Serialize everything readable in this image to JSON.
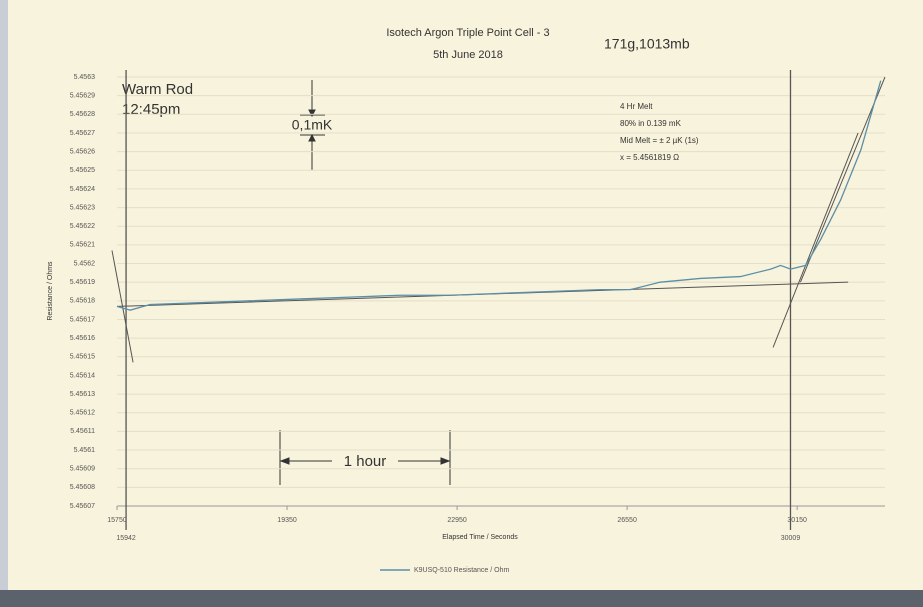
{
  "chart_data": {
    "type": "line",
    "title": "Isotech Argon Triple Point Cell - 3",
    "subtitle": "5th June 2018",
    "conditions": "171g,1013mb",
    "annotations": {
      "warm_rod": "Warm Rod",
      "time": "12:45pm",
      "scale": "0,1mK",
      "hour": "1 hour",
      "melt_box": [
        "4 Hr Melt",
        "80% in 0.139 mK",
        "Mid Melt = ± 2 µK (1s)",
        "x = 5.4561819 Ω"
      ]
    },
    "y_label": "Resistance / Ohms",
    "x_label": "Elapsed Time / Seconds",
    "xlim": [
      15750,
      32010
    ],
    "xticks": [
      15750,
      19350,
      22950,
      26550,
      30150
    ],
    "ylim": [
      5.45607,
      5.4563
    ],
    "yticks": [
      5.4563,
      5.45629,
      5.45628,
      5.45627,
      5.45626,
      5.45625,
      5.45624,
      5.45623,
      5.45622,
      5.45621,
      5.4562,
      5.45619,
      5.45618,
      5.45617,
      5.45616,
      5.45615,
      5.45614,
      5.45613,
      5.45612,
      5.45611,
      5.4561,
      5.45609,
      5.45608,
      5.45607
    ],
    "grid": true,
    "markers": [
      15942,
      30009
    ],
    "x": [
      15750,
      16030,
      16450,
      17510,
      18570,
      19630,
      20690,
      21750,
      22800,
      23860,
      24920,
      25980,
      26620,
      27250,
      28100,
      28950,
      29590,
      29800,
      30010,
      30330,
      30650,
      31070,
      31500,
      31920
    ],
    "series": [
      {
        "name": "K9USQ-510 Resistance / Ohm",
        "color": "#5b8fa8",
        "values": [
          5.456177,
          5.456175,
          5.456178,
          5.456179,
          5.45618,
          5.456181,
          5.456182,
          5.456183,
          5.456183,
          5.456184,
          5.456185,
          5.456186,
          5.456186,
          5.45619,
          5.456192,
          5.456193,
          5.456197,
          5.456199,
          5.456197,
          5.456199,
          5.456213,
          5.456234,
          5.456261,
          5.456298
        ]
      }
    ],
    "fit_lines": [
      {
        "x": [
          15644,
          16090
        ],
        "y": [
          5.456207,
          5.456147
        ]
      },
      {
        "x": [
          15750,
          31230
        ],
        "y": [
          5.456177,
          5.45619
        ]
      },
      {
        "x": [
          29640,
          31440
        ],
        "y": [
          5.456155,
          5.45627
        ]
      },
      {
        "x": [
          30220,
          32010
        ],
        "y": [
          5.45619,
          5.4563
        ]
      }
    ]
  }
}
